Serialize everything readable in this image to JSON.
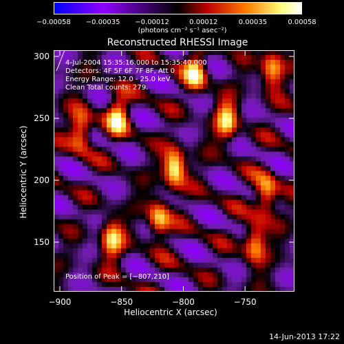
{
  "colorbar": {
    "ticks": [
      "−0.00058",
      "−0.00035",
      "−0.00012",
      "0.00012",
      "0.00035",
      "0.00058"
    ],
    "tick_values": [
      -0.00058,
      -0.00035,
      -0.00012,
      0.00012,
      0.00035,
      0.00058
    ],
    "range": [
      -0.00058,
      0.00058
    ],
    "unit_label": "(photons cm⁻² s⁻¹ asec⁻²)",
    "colors": [
      "#0000ff",
      "#9000ff",
      "#000000",
      "#c00000",
      "#ff8000",
      "#ffff80",
      "#ffffff"
    ]
  },
  "chart_data": {
    "type": "heatmap",
    "title": "Reconstructed RHESSI Image",
    "xlabel": "Heliocentric X (arcsec)",
    "ylabel": "Heliocentric Y (arcsec)",
    "xlim": [
      -905,
      -710
    ],
    "ylim": [
      110,
      305
    ],
    "xticks": [
      -900,
      -850,
      -800,
      -750
    ],
    "yticks": [
      150,
      200,
      250,
      300
    ],
    "xtick_labels": [
      "−900",
      "−850",
      "−800",
      "−750"
    ],
    "ytick_labels": [
      "150",
      "200",
      "250",
      "300"
    ],
    "annotations": {
      "time": "4-Jul-2004 15:35:16.000 to 15:35:40.000",
      "detectors": "Detectors: 4F 5F 6F 7F 8F, Att 0",
      "energy": "Energy Range: 12.0 - 25.0 keV",
      "clean": "Clean     Total counts: 279.",
      "peak": "Position of Peak = [−807,210]"
    },
    "peak": [
      -807,
      210
    ],
    "bright_sources": [
      {
        "x": -807,
        "y": 210
      },
      {
        "x": -883,
        "y": 240
      },
      {
        "x": -853,
        "y": 252
      },
      {
        "x": -858,
        "y": 152
      },
      {
        "x": -820,
        "y": 168
      },
      {
        "x": -765,
        "y": 248
      },
      {
        "x": -733,
        "y": 188
      },
      {
        "x": -728,
        "y": 290
      },
      {
        "x": -790,
        "y": 287
      },
      {
        "x": -742,
        "y": 150
      }
    ]
  },
  "footer": {
    "timestamp": "14-Jun-2013 17:22"
  }
}
